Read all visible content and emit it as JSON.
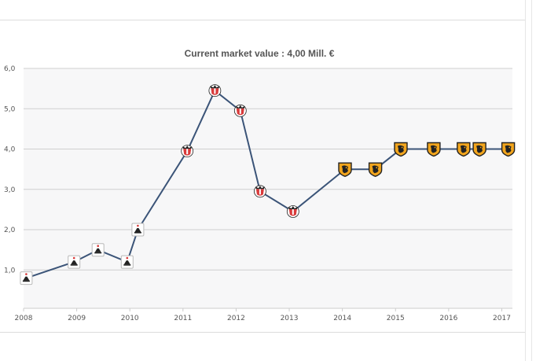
{
  "chart_data": {
    "type": "line",
    "title": "Current market value : 4,00 Mill. €",
    "xlabel": "",
    "ylabel": "",
    "x_ticks": [
      "2008",
      "2009",
      "2010",
      "2011",
      "2012",
      "2013",
      "2014",
      "2015",
      "2016",
      "2017"
    ],
    "y_ticks": [
      "1,0",
      "2,0",
      "3,0",
      "4,0",
      "5,0",
      "6,0"
    ],
    "xlim": [
      2008.0,
      2017.2
    ],
    "ylim": [
      0.05,
      6.0
    ],
    "grid": true,
    "legend": "none",
    "line_color": "#3b5478",
    "series": [
      {
        "points": [
          {
            "x": 2008.05,
            "y": 0.8,
            "club": "club-a"
          },
          {
            "x": 2008.95,
            "y": 1.2,
            "club": "club-a"
          },
          {
            "x": 2009.4,
            "y": 1.5,
            "club": "club-a"
          },
          {
            "x": 2009.95,
            "y": 1.2,
            "club": "club-a"
          },
          {
            "x": 2010.15,
            "y": 2.0,
            "club": "club-a"
          },
          {
            "x": 2011.08,
            "y": 3.95,
            "club": "club-b"
          },
          {
            "x": 2011.6,
            "y": 5.45,
            "club": "club-b"
          },
          {
            "x": 2012.08,
            "y": 4.95,
            "club": "club-b"
          },
          {
            "x": 2012.45,
            "y": 2.95,
            "club": "club-b"
          },
          {
            "x": 2013.07,
            "y": 2.45,
            "club": "club-b"
          },
          {
            "x": 2014.05,
            "y": 3.5,
            "club": "club-c"
          },
          {
            "x": 2014.62,
            "y": 3.5,
            "club": "club-c"
          },
          {
            "x": 2015.1,
            "y": 4.0,
            "club": "club-c"
          },
          {
            "x": 2015.72,
            "y": 4.0,
            "club": "club-c"
          },
          {
            "x": 2016.28,
            "y": 4.0,
            "club": "club-c"
          },
          {
            "x": 2016.58,
            "y": 4.0,
            "club": "club-c"
          },
          {
            "x": 2017.12,
            "y": 4.0,
            "club": "club-c"
          }
        ]
      }
    ]
  }
}
